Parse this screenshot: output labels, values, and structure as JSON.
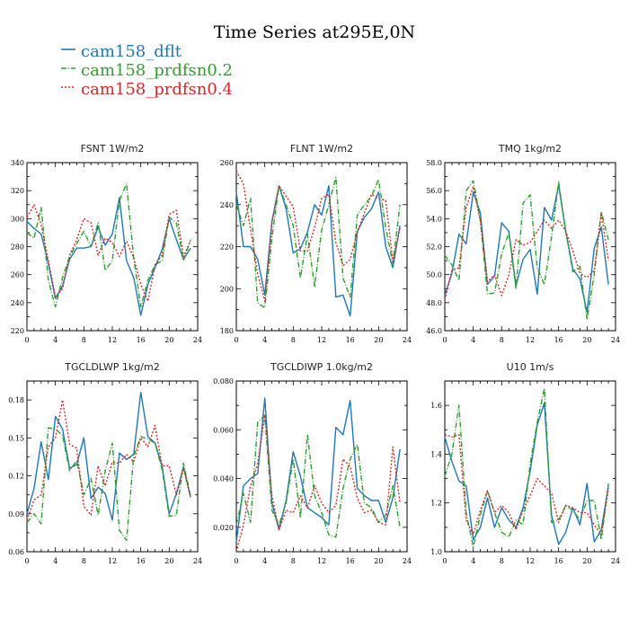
{
  "figure": {
    "title": "Time Series at295E,0N"
  },
  "legend": [
    {
      "name": "cam158_dflt",
      "color": "#1f77b4",
      "dash": "solid"
    },
    {
      "name": "cam158_prdfsn0.2",
      "color": "#2ca02c",
      "dash": "dashdot"
    },
    {
      "name": "cam158_prdfsn0.4",
      "color": "#d62728",
      "dash": "dotted"
    }
  ],
  "chart_data": [
    {
      "type": "line",
      "title": "FSNT   1W/m2",
      "x": [
        0,
        1,
        2,
        3,
        4,
        5,
        6,
        7,
        8,
        9,
        10,
        11,
        12,
        13,
        14,
        15,
        16,
        17,
        18,
        19,
        20,
        21,
        22,
        23
      ],
      "xlim": [
        0,
        24
      ],
      "xticks": [
        "0",
        "4",
        "8",
        "12",
        "16",
        "20",
        "24"
      ],
      "ylim": [
        220,
        340
      ],
      "yticks": [
        "220",
        "240",
        "260",
        "280",
        "300",
        "320",
        "340"
      ],
      "series": [
        {
          "name": "cam158_dflt",
          "values": [
            298,
            293,
            289,
            268,
            243,
            252,
            271,
            279,
            279,
            280,
            294,
            281,
            289,
            315,
            270,
            258,
            231,
            253,
            265,
            278,
            300,
            285,
            271,
            279
          ]
        },
        {
          "name": "cam158_prdfsn0.2",
          "values": [
            290,
            286,
            308,
            256,
            237,
            258,
            273,
            282,
            291,
            280,
            297,
            263,
            270,
            313,
            325,
            272,
            237,
            256,
            267,
            270,
            301,
            297,
            270,
            285
          ]
        },
        {
          "name": "cam158_prdfsn0.4",
          "values": [
            301,
            310,
            296,
            270,
            244,
            250,
            274,
            285,
            300,
            297,
            274,
            286,
            283,
            273,
            284,
            272,
            253,
            241,
            267,
            274,
            303,
            306,
            273,
            284
          ]
        }
      ]
    },
    {
      "type": "line",
      "title": "FLNT   1W/m2",
      "x": [
        0,
        1,
        2,
        3,
        4,
        5,
        6,
        7,
        8,
        9,
        10,
        11,
        12,
        13,
        14,
        15,
        16,
        17,
        18,
        19,
        20,
        21,
        22,
        23
      ],
      "xlim": [
        0,
        24
      ],
      "xticks": [
        "0",
        "4",
        "8",
        "12",
        "16",
        "20",
        "24"
      ],
      "ylim": [
        180,
        260
      ],
      "yticks": [
        "180",
        "200",
        "220",
        "240",
        "260"
      ],
      "series": [
        {
          "name": "cam158_dflt",
          "values": [
            246,
            220,
            220,
            214,
            197,
            232,
            249,
            238,
            217,
            219,
            227,
            240,
            235,
            249,
            196,
            197,
            187,
            227,
            234,
            238,
            246,
            220,
            210,
            230
          ]
        },
        {
          "name": "cam158_prdfsn0.2",
          "values": [
            240,
            230,
            243,
            193,
            191,
            224,
            249,
            240,
            230,
            205,
            226,
            201,
            228,
            240,
            253,
            205,
            196,
            235,
            240,
            244,
            252,
            229,
            212,
            240
          ]
        },
        {
          "name": "cam158_prdfsn0.4",
          "values": [
            256,
            250,
            228,
            207,
            194,
            231,
            249,
            244,
            239,
            218,
            218,
            229,
            243,
            245,
            222,
            211,
            214,
            227,
            236,
            245,
            243,
            242,
            213,
            229
          ]
        }
      ]
    },
    {
      "type": "line",
      "title": "TMQ   1kg/m2",
      "x": [
        0,
        1,
        2,
        3,
        4,
        5,
        6,
        7,
        8,
        9,
        10,
        11,
        12,
        13,
        14,
        15,
        16,
        17,
        18,
        19,
        20,
        21,
        22,
        23
      ],
      "xlim": [
        0,
        24
      ],
      "xticks": [
        "0",
        "4",
        "8",
        "12",
        "16",
        "20",
        "24"
      ],
      "ylim": [
        46.0,
        58.0
      ],
      "yticks": [
        "46.0",
        "48.0",
        "50.0",
        "52.0",
        "54.0",
        "56.0",
        "58.0"
      ],
      "series": [
        {
          "name": "cam158_dflt",
          "values": [
            48.5,
            50.1,
            52.9,
            52.2,
            55.9,
            54.4,
            49.3,
            49.9,
            53.7,
            53.1,
            49.2,
            51.1,
            51.8,
            48.6,
            54.8,
            53.9,
            56.4,
            53.1,
            50.4,
            49.7,
            47.3,
            51.9,
            53.4,
            49.3
          ]
        },
        {
          "name": "cam158_prdfsn0.2",
          "values": [
            51.4,
            50.7,
            49.6,
            56.0,
            56.7,
            53.9,
            48.6,
            48.7,
            51.5,
            53.0,
            49.0,
            55.1,
            55.7,
            50.5,
            49.3,
            52.7,
            56.6,
            53.1,
            50.2,
            50.6,
            46.8,
            50.0,
            54.5,
            52.5
          ]
        },
        {
          "name": "cam158_prdfsn0.4",
          "values": [
            48.2,
            50.3,
            50.5,
            54.8,
            56.3,
            53.8,
            49.5,
            50.0,
            48.5,
            50.0,
            52.5,
            52.1,
            52.3,
            53.1,
            53.9,
            53.3,
            53.9,
            53.1,
            51.7,
            50.1,
            49.8,
            50.3,
            54.4,
            51.0
          ]
        }
      ]
    },
    {
      "type": "line",
      "title": "TGCLDLWP   1kg/m2",
      "x": [
        0,
        1,
        2,
        3,
        4,
        5,
        6,
        7,
        8,
        9,
        10,
        11,
        12,
        13,
        14,
        15,
        16,
        17,
        18,
        19,
        20,
        21,
        22,
        23
      ],
      "xlim": [
        0,
        24
      ],
      "xticks": [
        "0",
        "4",
        "8",
        "12",
        "16",
        "20",
        "24"
      ],
      "ylim": [
        0.06,
        0.195
      ],
      "yticks": [
        "0.06",
        "0.09",
        "0.12",
        "0.15",
        "0.18"
      ],
      "series": [
        {
          "name": "cam158_dflt",
          "values": [
            0.09,
            0.11,
            0.147,
            0.117,
            0.167,
            0.157,
            0.126,
            0.129,
            0.15,
            0.102,
            0.111,
            0.106,
            0.085,
            0.138,
            0.133,
            0.137,
            0.186,
            0.151,
            0.146,
            0.128,
            0.09,
            0.106,
            0.127,
            0.103
          ]
        },
        {
          "name": "cam158_prdfsn0.2",
          "values": [
            0.083,
            0.09,
            0.082,
            0.158,
            0.157,
            0.152,
            0.124,
            0.132,
            0.105,
            0.118,
            0.089,
            0.124,
            0.146,
            0.077,
            0.069,
            0.136,
            0.151,
            0.149,
            0.146,
            0.125,
            0.088,
            0.089,
            0.13,
            0.104
          ]
        },
        {
          "name": "cam158_prdfsn0.4",
          "values": [
            0.085,
            0.101,
            0.105,
            0.143,
            0.15,
            0.18,
            0.145,
            0.142,
            0.096,
            0.089,
            0.128,
            0.112,
            0.131,
            0.13,
            0.137,
            0.131,
            0.15,
            0.143,
            0.16,
            0.128,
            0.128,
            0.105,
            0.126,
            0.103
          ]
        }
      ]
    },
    {
      "type": "line",
      "title": "TGCLDIWP   1.0kg/m2",
      "x": [
        0,
        1,
        2,
        3,
        4,
        5,
        6,
        7,
        8,
        9,
        10,
        11,
        12,
        13,
        14,
        15,
        16,
        17,
        18,
        19,
        20,
        21,
        22,
        23
      ],
      "xlim": [
        0,
        24
      ],
      "xticks": [
        "0",
        "4",
        "8",
        "12",
        "16",
        "20",
        "24"
      ],
      "ylim": [
        0.01,
        0.08
      ],
      "yticks": [
        "0.020",
        "0.040",
        "0.060",
        "0.080"
      ],
      "series": [
        {
          "name": "cam158_dflt",
          "values": [
            0.014,
            0.037,
            0.04,
            0.042,
            0.073,
            0.03,
            0.019,
            0.031,
            0.051,
            0.041,
            0.028,
            0.026,
            0.024,
            0.021,
            0.061,
            0.058,
            0.072,
            0.036,
            0.033,
            0.031,
            0.031,
            0.022,
            0.032,
            0.052
          ]
        },
        {
          "name": "cam158_prdfsn0.2",
          "values": [
            0.021,
            0.034,
            0.022,
            0.063,
            0.066,
            0.027,
            0.021,
            0.03,
            0.048,
            0.024,
            0.058,
            0.033,
            0.026,
            0.017,
            0.016,
            0.036,
            0.048,
            0.054,
            0.03,
            0.028,
            0.022,
            0.025,
            0.037,
            0.02
          ]
        },
        {
          "name": "cam158_prdfsn0.4",
          "values": [
            0.01,
            0.021,
            0.037,
            0.046,
            0.066,
            0.033,
            0.019,
            0.027,
            0.026,
            0.033,
            0.028,
            0.037,
            0.03,
            0.026,
            0.029,
            0.048,
            0.045,
            0.032,
            0.026,
            0.027,
            0.022,
            0.021,
            0.053,
            0.03
          ]
        }
      ]
    },
    {
      "type": "line",
      "title": "U10   1m/s",
      "x": [
        0,
        1,
        2,
        3,
        4,
        5,
        6,
        7,
        8,
        9,
        10,
        11,
        12,
        13,
        14,
        15,
        16,
        17,
        18,
        19,
        20,
        21,
        22,
        23
      ],
      "xlim": [
        0,
        24
      ],
      "xticks": [
        "0",
        "4",
        "8",
        "12",
        "16",
        "20",
        "24"
      ],
      "ylim": [
        1.0,
        1.7
      ],
      "yticks": [
        "1.0",
        "1.2",
        "1.4",
        "1.6"
      ],
      "series": [
        {
          "name": "cam158_dflt",
          "values": [
            1.47,
            1.37,
            1.29,
            1.27,
            1.05,
            1.1,
            1.22,
            1.1,
            1.18,
            1.13,
            1.1,
            1.18,
            1.33,
            1.52,
            1.61,
            1.15,
            1.03,
            1.08,
            1.18,
            1.11,
            1.28,
            1.04,
            1.09,
            1.27
          ]
        },
        {
          "name": "cam158_prdfsn0.2",
          "values": [
            1.31,
            1.4,
            1.6,
            1.16,
            1.02,
            1.15,
            1.25,
            1.16,
            1.08,
            1.06,
            1.13,
            1.11,
            1.36,
            1.53,
            1.67,
            1.12,
            1.13,
            1.19,
            1.17,
            1.13,
            1.21,
            1.21,
            1.05,
            1.28
          ]
        },
        {
          "name": "cam158_prdfsn0.4",
          "values": [
            1.48,
            1.47,
            1.48,
            1.13,
            1.07,
            1.17,
            1.25,
            1.16,
            1.19,
            1.16,
            1.09,
            1.17,
            1.23,
            1.3,
            1.27,
            1.24,
            1.12,
            1.19,
            1.18,
            1.16,
            1.16,
            1.11,
            1.07,
            1.26
          ]
        }
      ]
    }
  ]
}
